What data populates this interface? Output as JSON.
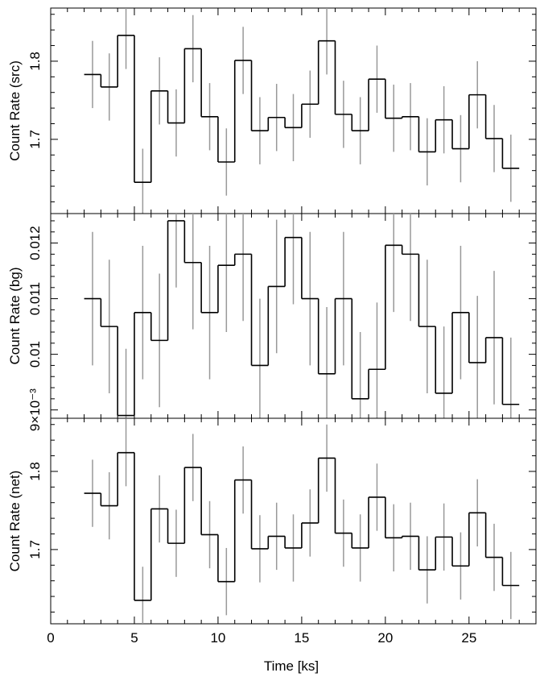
{
  "chart_data": {
    "type": "line",
    "step_style": "histogram-with-error-bars",
    "x_label": "Time [ks]",
    "x_range": [
      0,
      29
    ],
    "x_ticks": [
      0,
      5,
      10,
      15,
      20,
      25
    ],
    "x_tick_labels": [
      "0",
      "5",
      "10",
      "15",
      "20",
      "25"
    ],
    "bin_width": 1.0,
    "bin_centers": [
      2.5,
      3.5,
      4.5,
      5.5,
      6.5,
      7.5,
      8.5,
      9.5,
      10.5,
      11.5,
      12.5,
      13.5,
      14.5,
      15.5,
      16.5,
      17.5,
      18.5,
      19.5,
      20.5,
      21.5,
      22.5,
      23.5,
      24.5,
      25.5,
      26.5,
      27.5
    ],
    "colors": {
      "line": "#000000",
      "error_bar": "#999999"
    },
    "panels": [
      {
        "ylabel": "Count Rate (src)",
        "ylim": [
          1.605,
          1.868
        ],
        "y_ticks": [
          1.7,
          1.8
        ],
        "y_tick_labels": [
          "1.7",
          "1.8"
        ],
        "values": [
          1.783,
          1.767,
          1.833,
          1.645,
          1.762,
          1.721,
          1.816,
          1.729,
          1.671,
          1.801,
          1.711,
          1.728,
          1.715,
          1.745,
          1.826,
          1.732,
          1.711,
          1.777,
          1.727,
          1.729,
          1.684,
          1.725,
          1.688,
          1.757,
          1.701,
          1.663
        ],
        "errors": [
          0.043,
          0.043,
          0.043,
          0.043,
          0.043,
          0.043,
          0.043,
          0.043,
          0.043,
          0.043,
          0.043,
          0.043,
          0.043,
          0.043,
          0.043,
          0.043,
          0.043,
          0.043,
          0.043,
          0.043,
          0.043,
          0.043,
          0.043,
          0.043,
          0.043,
          0.043
        ]
      },
      {
        "ylabel": "Count Rate (bg)",
        "ylim": [
          0.00885,
          0.01253
        ],
        "y_ticks": [
          0.009,
          0.01,
          0.011,
          0.012
        ],
        "y_tick_labels": [
          "9×10⁻³",
          "0.01",
          "0.011",
          "0.012"
        ],
        "values": [
          0.011,
          0.0105,
          0.0089,
          0.01075,
          0.01025,
          0.0124,
          0.01165,
          0.01075,
          0.0116,
          0.0118,
          0.0098,
          0.01122,
          0.0121,
          0.011,
          0.00965,
          0.011,
          0.0092,
          0.00973,
          0.01196,
          0.0118,
          0.0105,
          0.0093,
          0.01075,
          0.00985,
          0.0103,
          0.0091
        ],
        "errors": [
          0.0012,
          0.0012,
          0.0012,
          0.0012,
          0.0012,
          0.0012,
          0.0012,
          0.0012,
          0.0012,
          0.0012,
          0.0012,
          0.0012,
          0.0012,
          0.0012,
          0.0012,
          0.0012,
          0.0012,
          0.0012,
          0.0012,
          0.0012,
          0.0012,
          0.0012,
          0.0012,
          0.0012,
          0.0012,
          0.0012
        ]
      },
      {
        "ylabel": "Count Rate (net)",
        "ylim": [
          1.605,
          1.868
        ],
        "y_ticks": [
          1.7,
          1.8
        ],
        "y_tick_labels": [
          "1.7",
          "1.8"
        ],
        "values": [
          1.772,
          1.756,
          1.824,
          1.635,
          1.752,
          1.708,
          1.805,
          1.719,
          1.659,
          1.789,
          1.701,
          1.717,
          1.702,
          1.734,
          1.817,
          1.721,
          1.702,
          1.767,
          1.715,
          1.717,
          1.674,
          1.716,
          1.679,
          1.747,
          1.69,
          1.654
        ],
        "errors": [
          0.043,
          0.043,
          0.043,
          0.043,
          0.043,
          0.043,
          0.043,
          0.043,
          0.043,
          0.043,
          0.043,
          0.043,
          0.043,
          0.043,
          0.043,
          0.043,
          0.043,
          0.043,
          0.043,
          0.043,
          0.043,
          0.043,
          0.043,
          0.043,
          0.043,
          0.043
        ]
      }
    ]
  }
}
